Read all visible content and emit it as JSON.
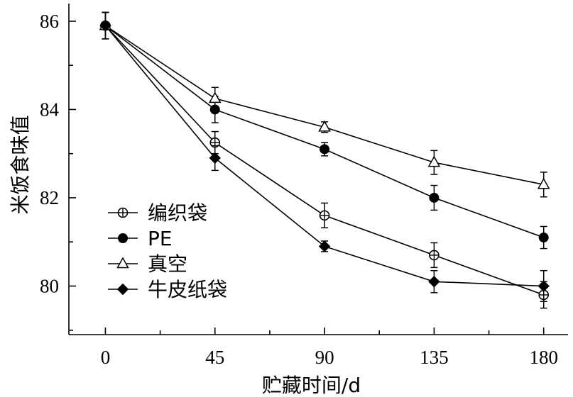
{
  "chart_data": {
    "type": "line",
    "xlabel": "贮藏时间/d",
    "ylabel": "米饭食味值",
    "x": [
      0,
      45,
      90,
      135,
      180
    ],
    "xticks": [
      0,
      45,
      90,
      135,
      180
    ],
    "yticks": [
      80,
      82,
      84,
      86
    ],
    "xlim": [
      -15,
      190
    ],
    "ylim": [
      78.9,
      86.4
    ],
    "grid": false,
    "legend_position": "lower-left",
    "series": [
      {
        "name": "编织袋",
        "marker": "circle-plus",
        "values": [
          85.9,
          83.25,
          81.6,
          80.7,
          79.8
        ],
        "errors": [
          0.3,
          0.25,
          0.28,
          0.28,
          0.3
        ]
      },
      {
        "name": "PE",
        "marker": "filled-circle",
        "values": [
          85.9,
          84.0,
          83.1,
          82.0,
          81.1
        ],
        "errors": [
          0.3,
          0.3,
          0.15,
          0.28,
          0.25
        ]
      },
      {
        "name": "真空",
        "marker": "open-triangle",
        "values": [
          85.9,
          84.25,
          83.6,
          82.8,
          82.3
        ],
        "errors": [
          0.3,
          0.25,
          0.12,
          0.27,
          0.28
        ]
      },
      {
        "name": "牛皮纸袋",
        "marker": "filled-diamond",
        "values": [
          85.9,
          82.9,
          80.9,
          80.1,
          80.0
        ],
        "errors": [
          0.3,
          0.28,
          0.12,
          0.25,
          0.35
        ]
      }
    ]
  }
}
